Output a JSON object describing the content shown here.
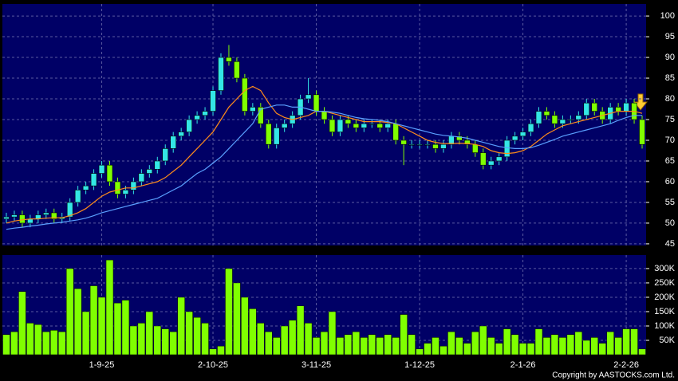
{
  "chart_data": [
    {
      "type": "candlestick",
      "up_color": "#33e6e6",
      "down_color": "#80ff00",
      "open": [
        51,
        51.5,
        52,
        50,
        51,
        52,
        52.5,
        51,
        51.5,
        55,
        58,
        59,
        62,
        64,
        60,
        57,
        58,
        60,
        62,
        63,
        65,
        68,
        71,
        72,
        75,
        76,
        77,
        82,
        90,
        89,
        85,
        77,
        78,
        74,
        69,
        73,
        74,
        76,
        80,
        81,
        77,
        75,
        72,
        75,
        74,
        73,
        74,
        74,
        73,
        74,
        70,
        69,
        69,
        69,
        69,
        68,
        69,
        71,
        70,
        69,
        67,
        64,
        65,
        66,
        70,
        71,
        72,
        74,
        77,
        76,
        74,
        75,
        75,
        76,
        79,
        77,
        75,
        78,
        77,
        79,
        75
      ],
      "high": [
        52.5,
        53,
        53,
        52,
        53,
        53.5,
        53.5,
        52.5,
        56,
        59,
        60,
        63,
        65,
        65,
        61,
        59,
        61,
        63,
        64,
        66,
        69,
        72,
        73,
        76,
        77,
        78,
        83,
        91,
        93,
        90,
        86,
        79,
        79,
        75,
        74,
        75,
        77,
        81,
        85,
        82,
        78,
        76,
        76,
        76,
        75,
        75,
        75,
        75,
        75,
        75,
        71,
        70,
        70,
        70,
        70,
        70,
        72,
        72,
        71,
        70,
        68,
        66,
        67,
        71,
        72,
        73,
        75,
        78,
        78,
        77,
        76,
        76,
        77,
        80,
        80,
        78,
        79,
        79,
        80,
        80,
        76
      ],
      "low": [
        50,
        50.5,
        49,
        49,
        50,
        51,
        50,
        50,
        50.5,
        54,
        57,
        58,
        61,
        59,
        56,
        56,
        57,
        59,
        61,
        62,
        64,
        67,
        70,
        71,
        74,
        75,
        76,
        81,
        88,
        84,
        76,
        76,
        73,
        68,
        68,
        72,
        73,
        75,
        79,
        76,
        74,
        71,
        71,
        73,
        72,
        72,
        73,
        72,
        72,
        69,
        64,
        68,
        68,
        68,
        67,
        67,
        68,
        69,
        68,
        66,
        63,
        63,
        64,
        65,
        69,
        70,
        71,
        73,
        75,
        73,
        73,
        74,
        74,
        75,
        76,
        74,
        74,
        76,
        76,
        74,
        68
      ],
      "close": [
        51.5,
        52,
        50,
        51,
        52,
        52.5,
        51,
        51.5,
        55,
        58,
        59,
        62,
        64,
        60,
        57,
        58,
        60,
        62,
        63,
        65,
        68,
        71,
        72,
        75,
        76,
        77,
        82,
        90,
        89,
        85,
        77,
        78,
        74,
        69,
        73,
        74,
        76,
        80,
        81,
        77,
        75,
        72,
        75,
        74,
        73,
        74,
        74,
        73,
        74,
        70,
        69,
        69,
        69,
        69,
        68,
        69,
        71,
        70,
        69,
        67,
        64,
        65,
        66,
        70,
        71,
        72,
        74,
        77,
        76,
        74,
        75,
        75,
        76,
        79,
        77,
        75,
        78,
        77,
        79,
        75,
        69
      ],
      "series": [
        {
          "color": "#ff8c1a",
          "values": [
            50,
            50.5,
            50.8,
            51,
            51,
            51.2,
            51.3,
            51.3,
            51.8,
            52.5,
            53.5,
            55,
            56.5,
            57.5,
            58,
            58.5,
            58.5,
            59,
            59.5,
            60,
            61,
            62.5,
            64,
            66,
            68,
            70,
            72,
            75,
            78,
            80,
            82,
            83,
            82,
            79,
            76.5,
            75.5,
            75,
            75.5,
            76,
            77,
            77,
            76.5,
            76,
            75.5,
            75,
            74.5,
            74.5,
            74.5,
            74.3,
            74,
            73,
            72,
            71,
            70,
            69.5,
            69.2,
            69.2,
            69.3,
            69.2,
            69,
            68.5,
            67.5,
            67,
            66.8,
            67,
            67.5,
            68.5,
            70,
            71.5,
            72.5,
            73.5,
            74,
            74.5,
            75,
            75.5,
            76,
            76.5,
            77,
            77,
            77,
            76.5
          ]
        },
        {
          "color": "#5aa0ff",
          "values": [
            48.5,
            48.8,
            49,
            49.3,
            49.5,
            49.8,
            50,
            50.2,
            50.5,
            50.8,
            51.2,
            51.8,
            52.5,
            53,
            53.5,
            54,
            54.5,
            55,
            55.5,
            56,
            57,
            58,
            59,
            60.5,
            62,
            63,
            64.5,
            66,
            68,
            70,
            72,
            74,
            77.5,
            78,
            78.5,
            78.5,
            78,
            78,
            77.5,
            77,
            77,
            76.8,
            76.5,
            76,
            75.5,
            75.2,
            75,
            74.8,
            74.5,
            74,
            73.5,
            73,
            72.5,
            72,
            71.5,
            71.2,
            71,
            70.8,
            70.5,
            70,
            69.5,
            69,
            68.5,
            68.2,
            68,
            68,
            68.2,
            68.8,
            69.5,
            70.2,
            71,
            71.5,
            72,
            72.5,
            73,
            73.5,
            74,
            74.8,
            75.5,
            76,
            76
          ]
        }
      ],
      "ylim": [
        44.6,
        102.9
      ],
      "yticks": [
        45,
        50,
        55,
        60,
        65,
        70,
        75,
        80,
        85,
        90,
        95,
        100
      ],
      "grid": true
    },
    {
      "type": "bar",
      "color": "#80ff00",
      "categories": [
        null,
        null,
        null,
        null,
        null,
        null,
        null,
        null,
        null,
        null,
        null,
        null,
        "1-9-25",
        null,
        null,
        null,
        null,
        null,
        null,
        null,
        null,
        null,
        null,
        null,
        null,
        null,
        "2-10-25",
        null,
        null,
        null,
        null,
        null,
        null,
        null,
        null,
        null,
        null,
        null,
        null,
        "3-11-25",
        null,
        null,
        null,
        null,
        null,
        null,
        null,
        null,
        null,
        null,
        null,
        null,
        "1-12-25",
        null,
        null,
        null,
        null,
        null,
        null,
        null,
        null,
        null,
        null,
        null,
        null,
        "2-1-26",
        null,
        null,
        null,
        null,
        null,
        null,
        null,
        null,
        null,
        null,
        null,
        null,
        "2-2-26",
        null,
        null
      ],
      "values": [
        70000,
        80000,
        220000,
        110000,
        105000,
        80000,
        85000,
        80000,
        300000,
        230000,
        150000,
        240000,
        200000,
        330000,
        180000,
        190000,
        100000,
        110000,
        150000,
        100000,
        90000,
        80000,
        200000,
        150000,
        130000,
        110000,
        20000,
        30000,
        300000,
        250000,
        200000,
        160000,
        110000,
        80000,
        60000,
        100000,
        120000,
        170000,
        110000,
        60000,
        80000,
        150000,
        60000,
        70000,
        80000,
        60000,
        70000,
        60000,
        70000,
        60000,
        140000,
        70000,
        20000,
        40000,
        60000,
        30000,
        80000,
        60000,
        40000,
        80000,
        100000,
        60000,
        40000,
        90000,
        70000,
        40000,
        40000,
        90000,
        60000,
        70000,
        60000,
        70000,
        80000,
        50000,
        60000,
        40000,
        80000,
        60000,
        90000,
        90000,
        20000
      ],
      "ylim": [
        0,
        347000
      ],
      "yticks": [
        {
          "value": 50000,
          "label": "50K"
        },
        {
          "value": 100000,
          "label": "100K"
        },
        {
          "value": 150000,
          "label": "150K"
        },
        {
          "value": 200000,
          "label": "200K"
        },
        {
          "value": 250000,
          "label": "250K"
        },
        {
          "value": 300000,
          "label": "300K"
        }
      ],
      "grid": true
    }
  ],
  "footer": "Copyright by AASTOCKS.com Ltd."
}
